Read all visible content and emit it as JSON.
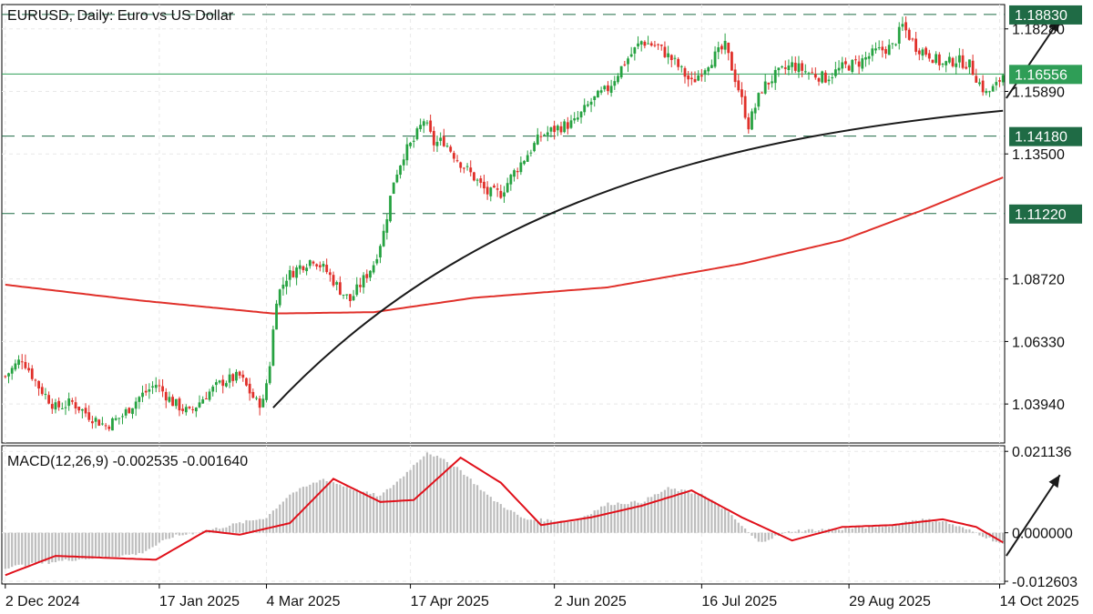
{
  "window": {
    "symbol_title": "EURUSD, Daily:  Euro vs US Dollar",
    "macd_title": "MACD(12,26,9) -0.002535 -0.001640"
  },
  "colors": {
    "bull": "#26a241",
    "bear": "#e0302a",
    "ma": "#e0302a",
    "macd_hist": "#bdbdbd",
    "macd_signal": "#e0101a",
    "level_badge": "#1f6b45",
    "current_badge": "#2f9e57",
    "grid": "#e8e8e8",
    "curve": "#1a1a1a"
  },
  "chart_data": [
    {
      "type": "candlestick",
      "title": "EURUSD, Daily:  Euro vs US Dollar",
      "y_ticks": [
        "1.18280",
        "1.15890",
        "1.13500",
        "1.08720",
        "1.06330",
        "1.03940"
      ],
      "x_ticks": [
        "2 Dec 2024",
        "17 Jan 2025",
        "4 Mar 2025",
        "17 Apr 2025",
        "2 Jun 2025",
        "16 Jul 2025",
        "29 Aug 2025",
        "14 Oct 2025"
      ],
      "ylim": [
        1.0245,
        1.1921
      ],
      "levels": [
        {
          "value": 1.1883,
          "label": "1.18830",
          "style": "dashed"
        },
        {
          "value": 1.1418,
          "label": "1.14180",
          "style": "dashed"
        },
        {
          "value": 1.1122,
          "label": "1.11220",
          "style": "dashed"
        }
      ],
      "current_price": {
        "value": 1.16556,
        "label": "1.16556"
      },
      "close_path": [
        [
          0,
          1.05
        ],
        [
          5,
          1.057
        ],
        [
          10,
          1.046
        ],
        [
          15,
          1.038
        ],
        [
          20,
          1.04
        ],
        [
          25,
          1.035
        ],
        [
          30,
          1.031
        ],
        [
          35,
          1.035
        ],
        [
          40,
          1.042
        ],
        [
          45,
          1.047
        ],
        [
          50,
          1.04
        ],
        [
          55,
          1.036
        ],
        [
          60,
          1.043
        ],
        [
          65,
          1.048
        ],
        [
          70,
          1.05
        ],
        [
          75,
          1.04
        ],
        [
          77,
          1.04
        ],
        [
          79,
          1.055
        ],
        [
          81,
          1.08
        ],
        [
          84,
          1.088
        ],
        [
          88,
          1.092
        ],
        [
          92,
          1.095
        ],
        [
          96,
          1.09
        ],
        [
          100,
          1.083
        ],
        [
          103,
          1.079
        ],
        [
          106,
          1.085
        ],
        [
          110,
          1.093
        ],
        [
          113,
          1.105
        ],
        [
          116,
          1.125
        ],
        [
          119,
          1.135
        ],
        [
          122,
          1.14
        ],
        [
          125,
          1.148
        ],
        [
          128,
          1.139
        ],
        [
          131,
          1.14
        ],
        [
          135,
          1.133
        ],
        [
          140,
          1.126
        ],
        [
          144,
          1.12
        ],
        [
          148,
          1.12
        ],
        [
          152,
          1.128
        ],
        [
          156,
          1.135
        ],
        [
          160,
          1.142
        ],
        [
          165,
          1.145
        ],
        [
          170,
          1.147
        ],
        [
          175,
          1.155
        ],
        [
          180,
          1.16
        ],
        [
          185,
          1.17
        ],
        [
          190,
          1.178
        ],
        [
          195,
          1.176
        ],
        [
          200,
          1.17
        ],
        [
          205,
          1.162
        ],
        [
          210,
          1.17
        ],
        [
          215,
          1.176
        ],
        [
          219,
          1.16
        ],
        [
          222,
          1.146
        ],
        [
          226,
          1.16
        ],
        [
          230,
          1.165
        ],
        [
          235,
          1.169
        ],
        [
          240,
          1.166
        ],
        [
          245,
          1.164
        ],
        [
          250,
          1.168
        ],
        [
          255,
          1.17
        ],
        [
          260,
          1.174
        ],
        [
          265,
          1.176
        ],
        [
          268,
          1.184
        ],
        [
          272,
          1.176
        ],
        [
          276,
          1.173
        ],
        [
          280,
          1.169
        ],
        [
          284,
          1.171
        ],
        [
          288,
          1.169
        ],
        [
          291,
          1.162
        ],
        [
          293,
          1.158
        ],
        [
          296,
          1.161
        ],
        [
          298,
          1.1655
        ]
      ],
      "moving_average": [
        [
          0,
          1.085
        ],
        [
          40,
          1.079
        ],
        [
          80,
          1.074
        ],
        [
          110,
          1.0745
        ],
        [
          140,
          1.08
        ],
        [
          180,
          1.084
        ],
        [
          220,
          1.093
        ],
        [
          250,
          1.102
        ],
        [
          275,
          1.114
        ],
        [
          298,
          1.126
        ]
      ],
      "annotation_curve": [
        [
          80,
          1.038
        ],
        [
          140,
          1.12
        ],
        [
          220,
          1.142
        ],
        [
          298,
          1.1515
        ]
      ],
      "arrow": {
        "from": [
          299,
          1.1563
        ],
        "to": [
          315,
          1.1865
        ]
      }
    },
    {
      "type": "macd",
      "title": "MACD(12,26,9) -0.002535 -0.001640",
      "params": [
        12,
        26,
        9
      ],
      "values": {
        "macd": -0.002535,
        "signal": -0.00164
      },
      "y_ticks": [
        "0.021136",
        "0.000000",
        "-0.012603"
      ],
      "ylim": [
        -0.0133,
        0.0226
      ],
      "histogram_path": [
        [
          0,
          -0.009
        ],
        [
          20,
          -0.007
        ],
        [
          40,
          -0.0055
        ],
        [
          50,
          -0.001
        ],
        [
          60,
          0.0005
        ],
        [
          70,
          0.0025
        ],
        [
          78,
          0.004
        ],
        [
          85,
          0.01
        ],
        [
          95,
          0.014
        ],
        [
          105,
          0.011
        ],
        [
          112,
          0.0095
        ],
        [
          118,
          0.014
        ],
        [
          126,
          0.021
        ],
        [
          135,
          0.017
        ],
        [
          145,
          0.009
        ],
        [
          155,
          0.0035
        ],
        [
          170,
          0.003
        ],
        [
          180,
          0.0075
        ],
        [
          190,
          0.008
        ],
        [
          198,
          0.0115
        ],
        [
          208,
          0.01
        ],
        [
          215,
          0.006
        ],
        [
          225,
          -0.0025
        ],
        [
          235,
          0.0005
        ],
        [
          250,
          0.001
        ],
        [
          265,
          0.002
        ],
        [
          272,
          0.0035
        ],
        [
          280,
          0.003
        ],
        [
          290,
          0.0
        ],
        [
          298,
          -0.003
        ]
      ],
      "signal_path": [
        [
          0,
          -0.011
        ],
        [
          15,
          -0.006
        ],
        [
          30,
          -0.0065
        ],
        [
          45,
          -0.007
        ],
        [
          60,
          0.0005
        ],
        [
          70,
          -0.0005
        ],
        [
          85,
          0.0025
        ],
        [
          98,
          0.014
        ],
        [
          112,
          0.008
        ],
        [
          122,
          0.0085
        ],
        [
          136,
          0.0195
        ],
        [
          148,
          0.013
        ],
        [
          160,
          0.002
        ],
        [
          175,
          0.004
        ],
        [
          190,
          0.007
        ],
        [
          205,
          0.011
        ],
        [
          220,
          0.004
        ],
        [
          235,
          -0.002
        ],
        [
          250,
          0.0015
        ],
        [
          265,
          0.002
        ],
        [
          280,
          0.0035
        ],
        [
          290,
          0.0015
        ],
        [
          298,
          -0.0025
        ]
      ],
      "arrow": {
        "from": [
          299,
          -0.006
        ],
        "to": [
          315,
          0.015
        ]
      }
    }
  ]
}
